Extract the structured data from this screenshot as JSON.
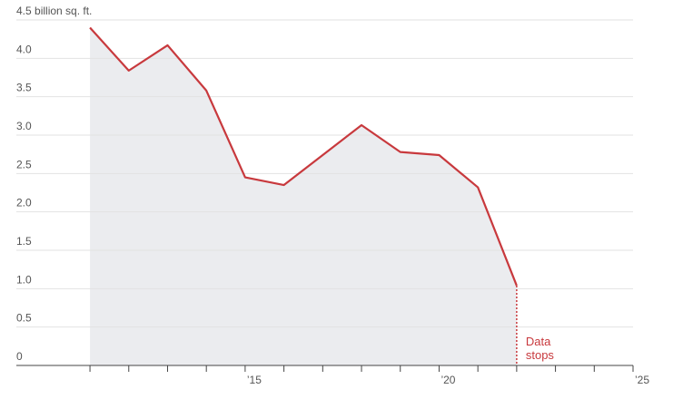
{
  "chart_data": {
    "type": "line",
    "x": [
      2011,
      2012,
      2013,
      2014,
      2015,
      2016,
      2017,
      2018,
      2019,
      2020,
      2021,
      2022
    ],
    "series": [
      {
        "color": "#c8393d",
        "area_color": "#ebecef",
        "values": [
          4.4,
          3.84,
          4.17,
          3.58,
          2.45,
          2.35,
          2.74,
          3.13,
          2.78,
          2.74,
          2.32,
          1.04
        ]
      }
    ],
    "xlim": [
      2009.5,
      2025
    ],
    "ylim": [
      0,
      4.5
    ],
    "xticks": [
      {
        "value": 2015,
        "label": "’15"
      },
      {
        "value": 2020,
        "label": "’20"
      },
      {
        "value": 2025,
        "label": "’25"
      }
    ],
    "x_minor_ticks": [
      2011,
      2012,
      2013,
      2014,
      2015,
      2016,
      2017,
      2018,
      2019,
      2020,
      2021,
      2022,
      2023,
      2024,
      2025
    ],
    "yticks": [
      0,
      0.5,
      {
        "value": 1,
        "label": "1.0"
      },
      1.5,
      {
        "value": 2,
        "label": "2.0"
      },
      2.5,
      {
        "value": 3,
        "label": "3.0"
      },
      3.5,
      {
        "value": 4,
        "label": "4.0"
      },
      {
        "value": 4.5,
        "label": "4.5 billion sq. ft."
      }
    ],
    "grid": true,
    "annotation": {
      "x": 2022,
      "lines": [
        "Data",
        "stops"
      ],
      "color": "#c8393d"
    }
  }
}
